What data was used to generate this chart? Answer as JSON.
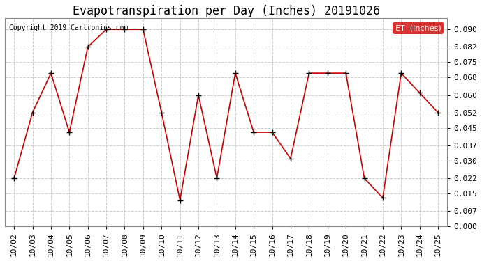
{
  "title": "Evapotranspiration per Day (Inches) 20191026",
  "copyright": "Copyright 2019 Cartronics.com",
  "legend_label": "ET  (Inches)",
  "dates": [
    "10/02",
    "10/03",
    "10/04",
    "10/05",
    "10/06",
    "10/07",
    "10/08",
    "10/09",
    "10/10",
    "10/11",
    "10/12",
    "10/13",
    "10/14",
    "10/15",
    "10/16",
    "10/17",
    "10/18",
    "10/19",
    "10/20",
    "10/21",
    "10/22",
    "10/23",
    "10/24",
    "10/25"
  ],
  "values": [
    0.022,
    0.052,
    0.07,
    0.043,
    0.082,
    0.09,
    0.09,
    0.09,
    0.052,
    0.012,
    0.06,
    0.022,
    0.07,
    0.043,
    0.043,
    0.031,
    0.07,
    0.07,
    0.07,
    0.022,
    0.013,
    0.07,
    0.061,
    0.052
  ],
  "ylim": [
    0.0,
    0.095
  ],
  "yticks": [
    0.0,
    0.007,
    0.015,
    0.022,
    0.03,
    0.037,
    0.045,
    0.052,
    0.06,
    0.068,
    0.075,
    0.082,
    0.09
  ],
  "line_color": "#cc0000",
  "marker_color": "#000000",
  "bg_color": "#ffffff",
  "grid_color": "#cccccc",
  "legend_bg": "#cc0000",
  "legend_text_color": "#ffffff",
  "title_fontsize": 12,
  "copyright_fontsize": 7,
  "tick_fontsize": 8
}
